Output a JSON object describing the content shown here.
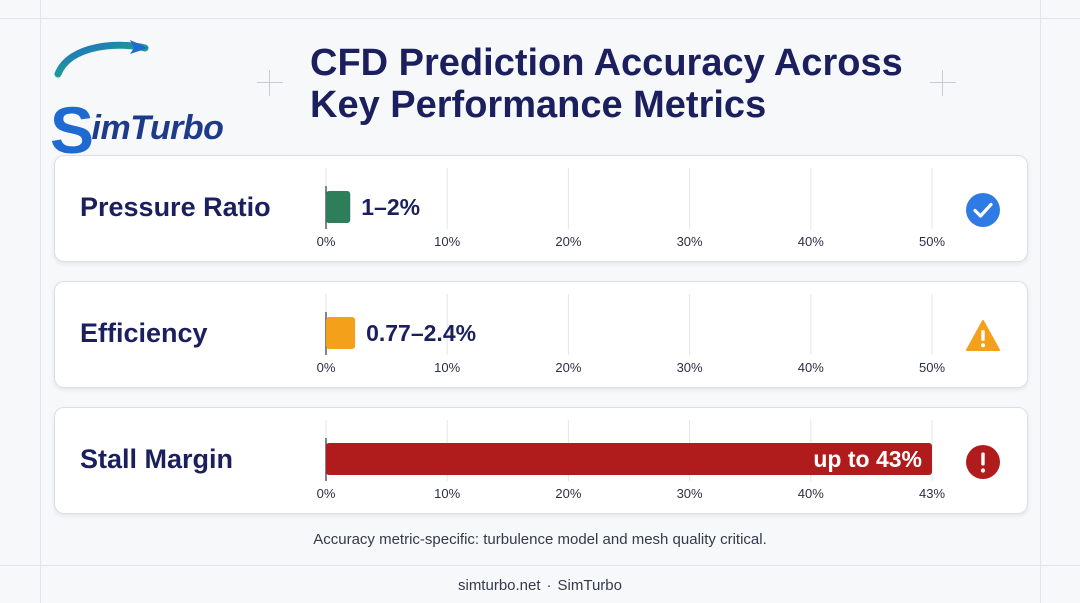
{
  "brand": {
    "logo_text": "SimTurbo",
    "logo_initial": "S",
    "logo_rest": "imTurbo",
    "colors": {
      "navy": "#1b1f5e",
      "blue": "#1e6ad0",
      "green": "#22c55e"
    }
  },
  "title": "CFD Prediction Accuracy Across\nKey Performance Metrics",
  "chart_data": [
    {
      "type": "bar",
      "orientation": "horizontal",
      "category": "Pressure Ratio",
      "range": [
        1,
        2
      ],
      "value_label": "1–2%",
      "xlim": [
        0,
        50
      ],
      "ticks": [
        "0%",
        "10%",
        "20%",
        "30%",
        "40%",
        "50%"
      ],
      "color": "#2e7d5b",
      "status_icon": "check-circle-icon",
      "status_color": "#2f7be6"
    },
    {
      "type": "bar",
      "orientation": "horizontal",
      "category": "Efficiency",
      "range": [
        0.77,
        2.4
      ],
      "value_label": "0.77–2.4%",
      "xlim": [
        0,
        50
      ],
      "ticks": [
        "0%",
        "10%",
        "20%",
        "30%",
        "40%",
        "50%"
      ],
      "color": "#f4a01a",
      "status_icon": "warning-triangle-icon",
      "status_color": "#f4a01a"
    },
    {
      "type": "bar",
      "orientation": "horizontal",
      "category": "Stall Margin",
      "range": [
        0,
        43
      ],
      "value_label": "up to 43%",
      "xlim": [
        0,
        43
      ],
      "ticks": [
        "0%",
        "10%",
        "20%",
        "30%",
        "40%",
        "43%"
      ],
      "color": "#b01c1c",
      "status_icon": "error-circle-icon",
      "status_color": "#b01c1c"
    }
  ],
  "footnote": "Accuracy metric-specific: turbulence model and mesh quality critical.",
  "footer": {
    "site": "simturbo.net",
    "separator": "·",
    "brand": "SimTurbo"
  }
}
